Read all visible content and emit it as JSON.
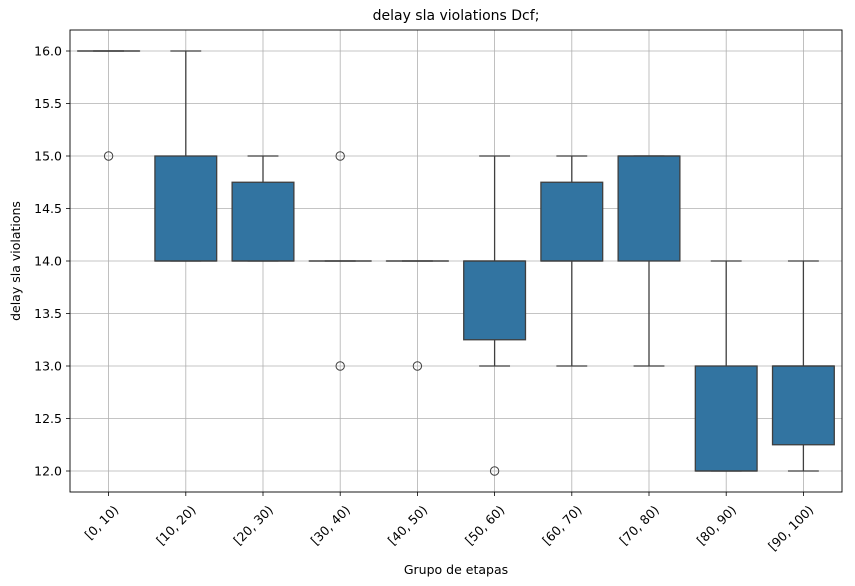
{
  "chart_data": {
    "type": "box",
    "title": "delay sla violations Dcf;",
    "xlabel": "Grupo de etapas",
    "ylabel": "delay sla violations",
    "ylim": [
      11.8,
      16.2
    ],
    "yticks": [
      "12.0",
      "12.5",
      "13.0",
      "13.5",
      "14.0",
      "14.5",
      "15.0",
      "15.5",
      "16.0"
    ],
    "grid": true,
    "box_color": "#3274a1",
    "categories": [
      "[0, 10)",
      "[10, 20)",
      "[20, 30)",
      "[30, 40)",
      "[40, 50)",
      "[50, 60)",
      "[60, 70)",
      "[70, 80)",
      "[80, 90)",
      "[90, 100)"
    ],
    "boxes": [
      {
        "whisker_low": 16,
        "q1": 16,
        "median": 16,
        "q3": 16,
        "whisker_high": 16,
        "outliers": [
          15
        ]
      },
      {
        "whisker_low": 14,
        "q1": 14,
        "median": 14,
        "q3": 15,
        "whisker_high": 16,
        "outliers": []
      },
      {
        "whisker_low": 14,
        "q1": 14,
        "median": 14,
        "q3": 14.75,
        "whisker_high": 15,
        "outliers": []
      },
      {
        "whisker_low": 14,
        "q1": 14,
        "median": 14,
        "q3": 14,
        "whisker_high": 14,
        "outliers": [
          13,
          15
        ]
      },
      {
        "whisker_low": 14,
        "q1": 14,
        "median": 14,
        "q3": 14,
        "whisker_high": 14,
        "outliers": [
          13
        ]
      },
      {
        "whisker_low": 13,
        "q1": 13.25,
        "median": 14,
        "q3": 14,
        "whisker_high": 15,
        "outliers": [
          12
        ]
      },
      {
        "whisker_low": 13,
        "q1": 14,
        "median": 14,
        "q3": 14.75,
        "whisker_high": 15,
        "outliers": []
      },
      {
        "whisker_low": 13,
        "q1": 14,
        "median": 15,
        "q3": 15,
        "whisker_high": 15,
        "outliers": []
      },
      {
        "whisker_low": 12,
        "q1": 12,
        "median": 12,
        "q3": 13,
        "whisker_high": 14,
        "outliers": []
      },
      {
        "whisker_low": 12,
        "q1": 12.25,
        "median": 13,
        "q3": 13,
        "whisker_high": 14,
        "outliers": []
      }
    ]
  }
}
